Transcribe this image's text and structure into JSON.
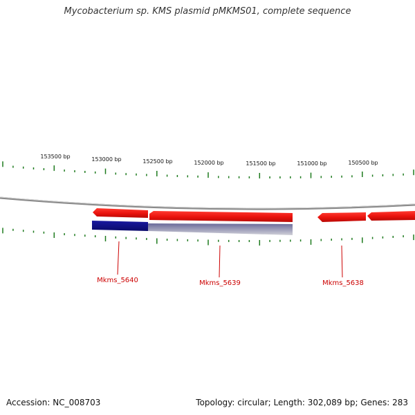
{
  "title": "Mycobacterium sp. KMS plasmid pMKMS01, complete sequence",
  "colors": {
    "tick": "#1d7a1d",
    "forward_gene": "#e8120c",
    "reverse_gene": "#121288",
    "gene_label": "#cc0000",
    "backbone": "#8a8a8a"
  },
  "ruler": {
    "labels": [
      "153500 bp",
      "153000 bp",
      "152500 bp",
      "152000 bp",
      "151500 bp",
      "151000 bp",
      "150500 bp"
    ]
  },
  "genes": [
    {
      "name": "Mkms_5640",
      "strand": "-"
    },
    {
      "name": "Mkms_5639",
      "strand": "+"
    },
    {
      "name": "Mkms_5638",
      "strand": "+"
    }
  ],
  "footer": {
    "accession": "Accession: NC_008703",
    "topology": "Topology: circular; Length: 302,089 bp; Genes: 283"
  }
}
